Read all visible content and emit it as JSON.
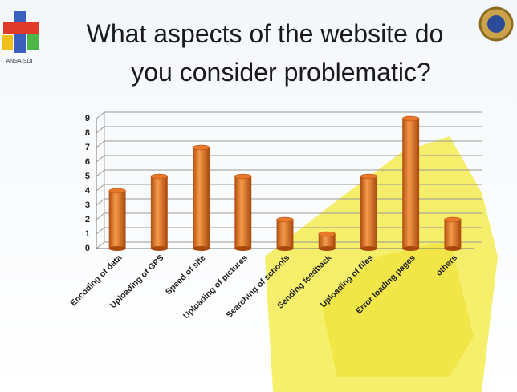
{
  "logo_text": "ANSA-SDI",
  "chart_data": {
    "type": "bar",
    "title": "What aspects of the website do you consider problematic?",
    "categories": [
      "Encoding of data",
      "Uploading of GPS",
      "Speed of site",
      "Uploading of pictures",
      "Searching of schools",
      "Sending feedback",
      "Uploading of files",
      "Error loading pages",
      "others"
    ],
    "values": [
      4,
      5,
      7,
      5,
      2,
      1,
      5,
      9,
      2
    ],
    "color": "#e8782a",
    "ylim": [
      0,
      9
    ],
    "yticks": [
      0,
      1,
      2,
      3,
      4,
      5,
      6,
      7,
      8,
      9
    ],
    "grid": true
  }
}
